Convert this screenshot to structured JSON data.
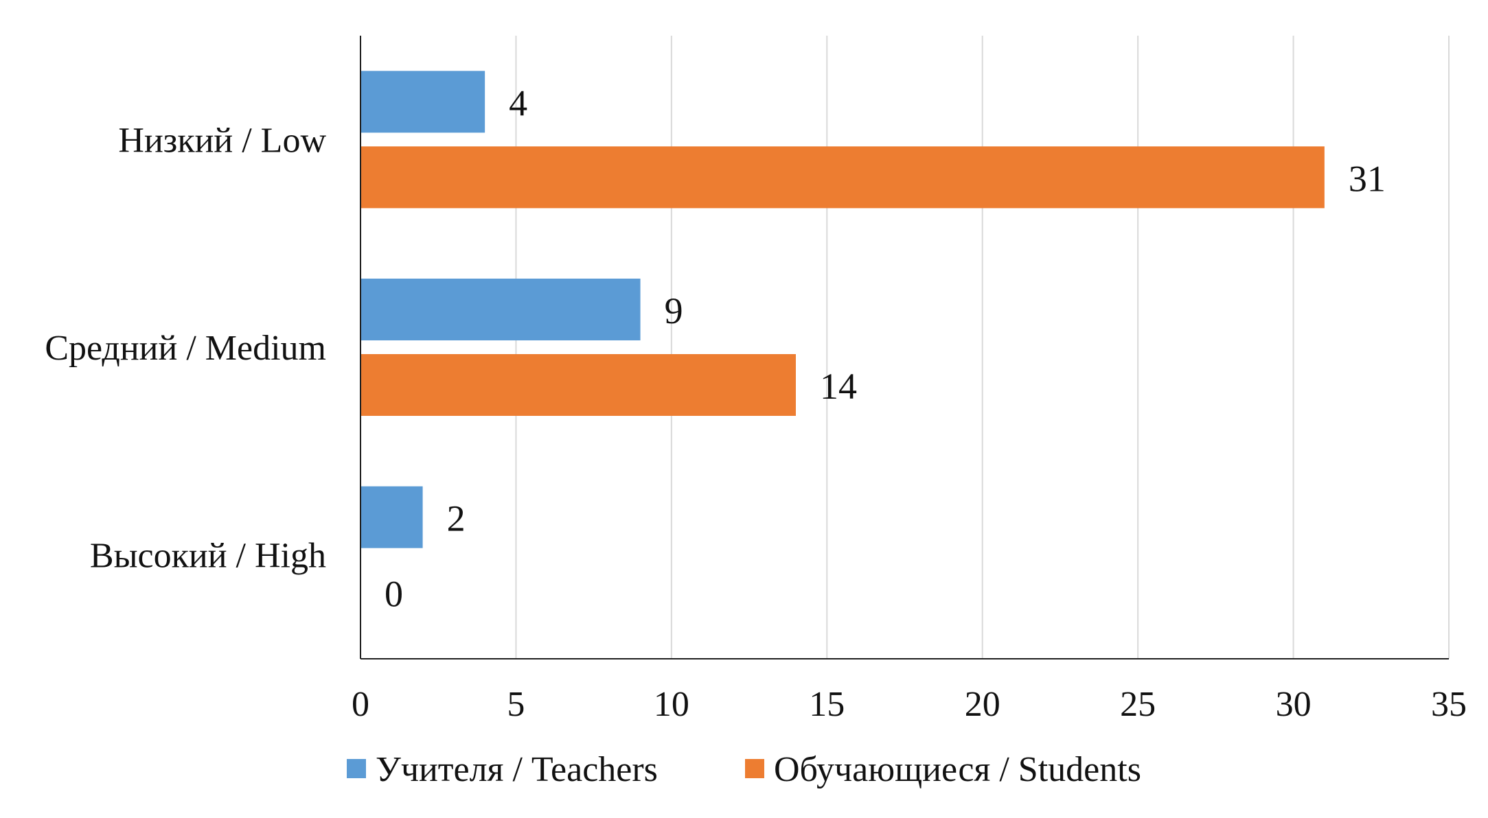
{
  "chart_data": {
    "type": "bar",
    "orientation": "horizontal",
    "categories": [
      "Низкий / Low",
      "Средний / Medium",
      "Высокий / High"
    ],
    "series": [
      {
        "name": "Учителя / Teachers",
        "values": [
          4,
          9,
          2
        ],
        "color": "#5b9bd5"
      },
      {
        "name": "Обучающиеся / Students",
        "values": [
          31,
          14,
          0
        ],
        "color": "#ed7d31"
      }
    ],
    "xticks": [
      "0",
      "5",
      "10",
      "15",
      "20",
      "25",
      "30",
      "35"
    ],
    "xlim": [
      0,
      35
    ],
    "grid": "vertical",
    "legend": "bottom",
    "title": "",
    "xlabel": "",
    "ylabel": ""
  }
}
